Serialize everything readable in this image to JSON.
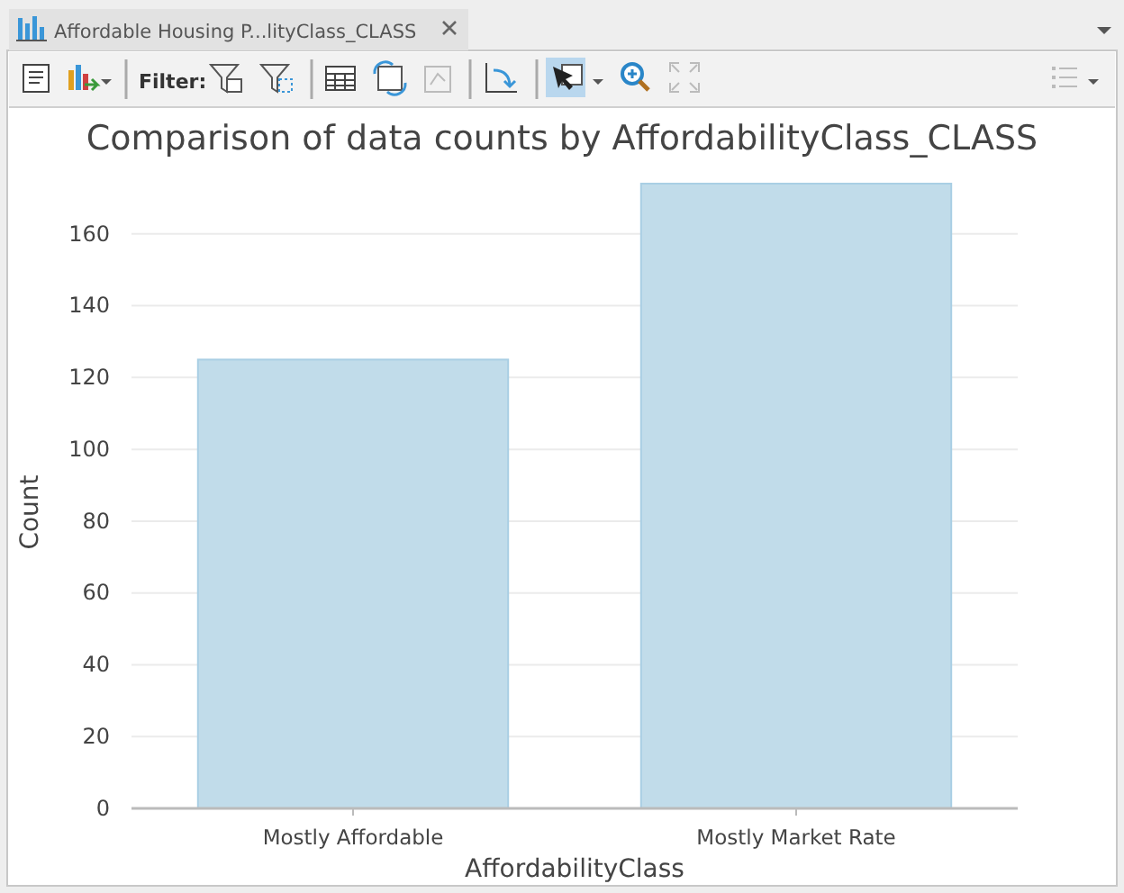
{
  "chart_data": {
    "type": "bar",
    "title": "Comparison of data counts by AffordabilityClass_CLASS",
    "xlabel": "AffordabilityClass",
    "ylabel": "Count",
    "categories": [
      "Mostly Affordable",
      "Mostly Market Rate"
    ],
    "values": [
      125,
      174
    ],
    "color": "#c1dcea",
    "ylim": [
      0,
      175
    ],
    "yticks": [
      0,
      20,
      40,
      60,
      80,
      100,
      120,
      140,
      160
    ],
    "grid": "y",
    "annotations": [
      "Affordable Housing P...lityClass_CLASS",
      "Filter:"
    ]
  }
}
